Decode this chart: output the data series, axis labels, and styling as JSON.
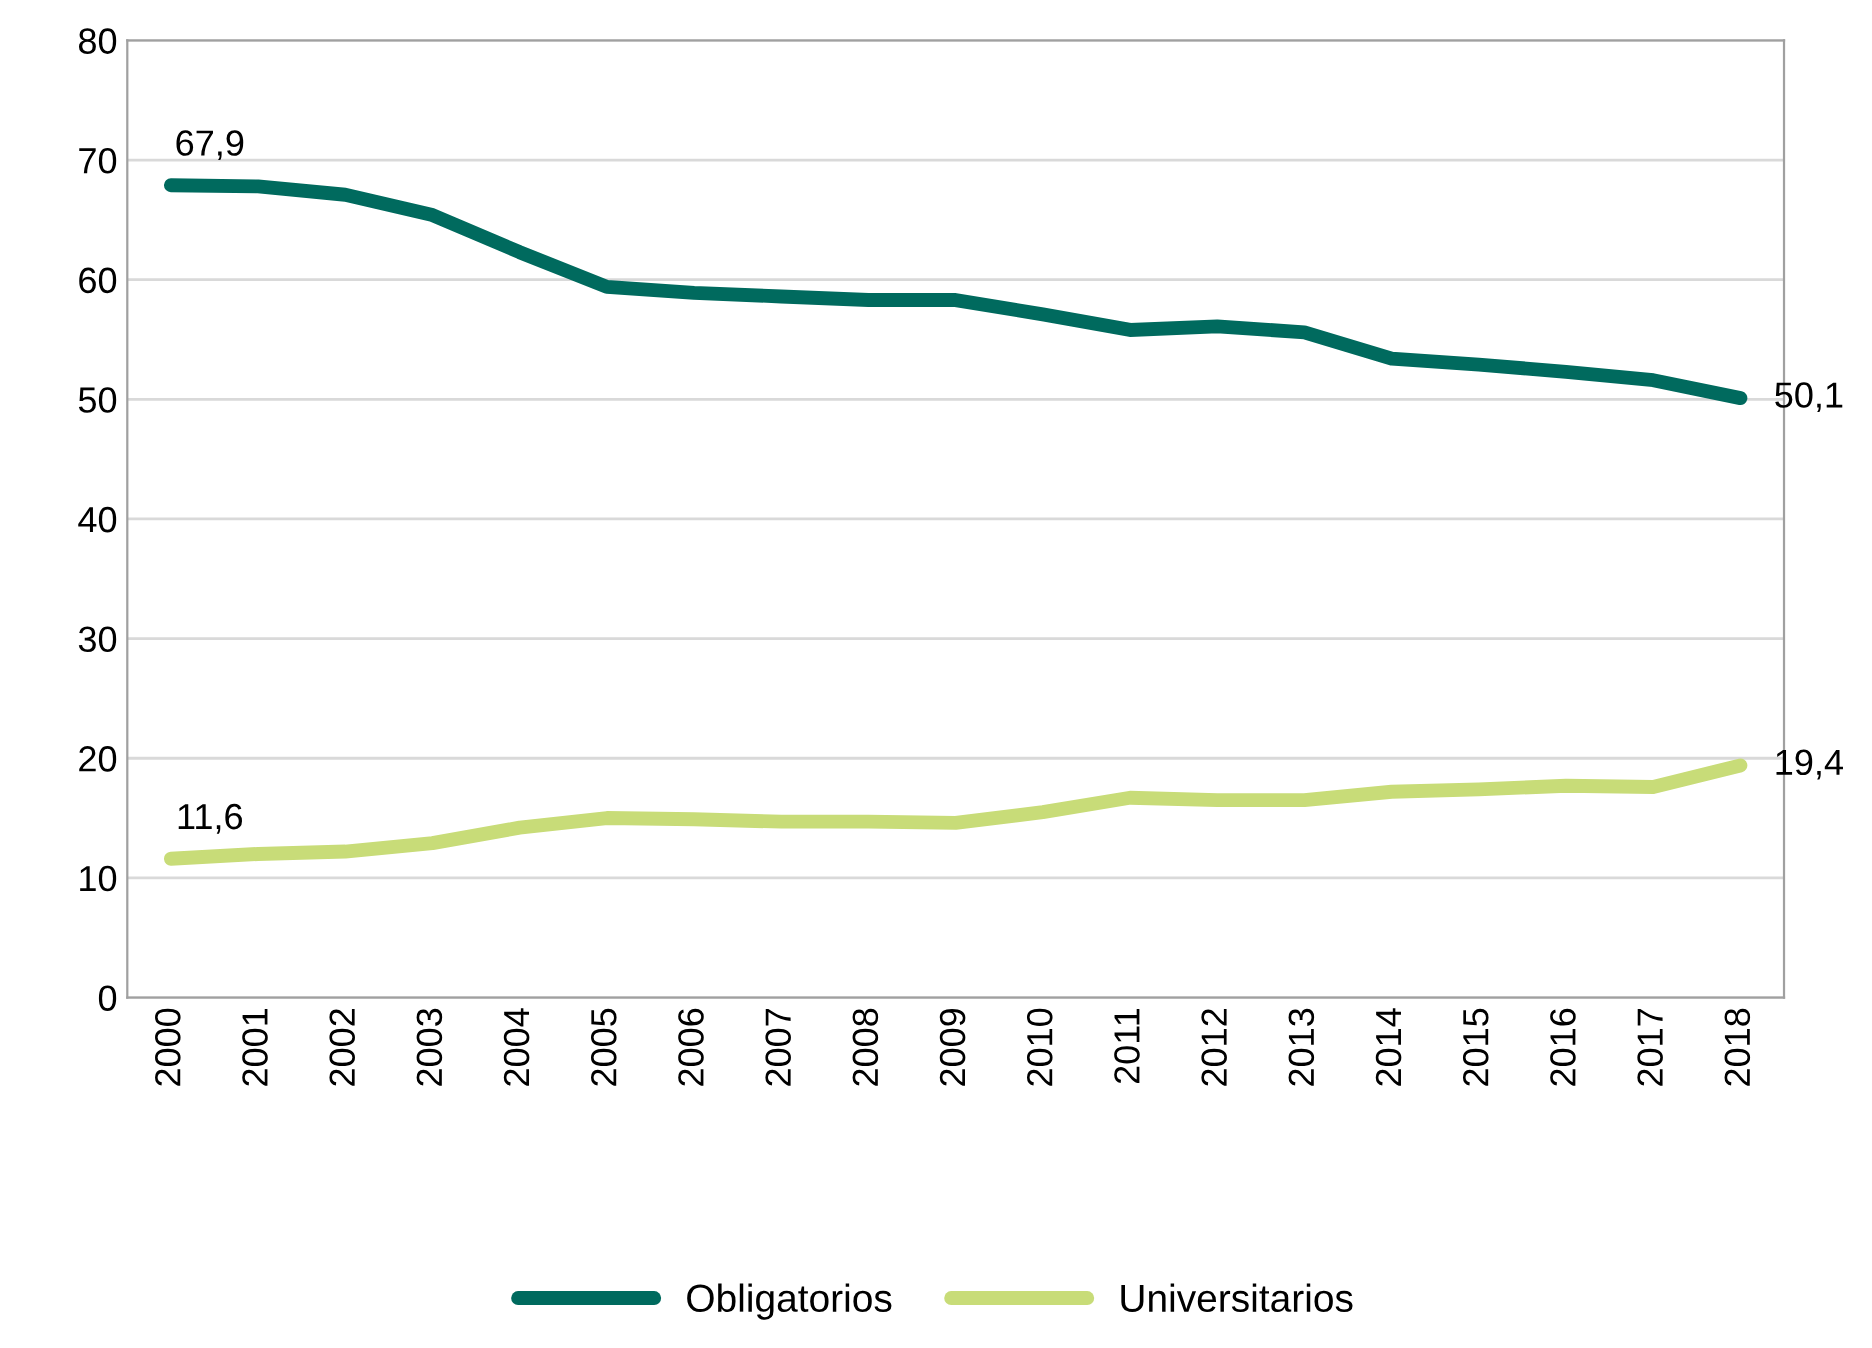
{
  "chart_data": {
    "type": "line",
    "categories": [
      "2000",
      "2001",
      "2002",
      "2003",
      "2004",
      "2005",
      "2006",
      "2007",
      "2008",
      "2009",
      "2010",
      "2011",
      "2012",
      "2013",
      "2014",
      "2015",
      "2016",
      "2017",
      "2018"
    ],
    "series": [
      {
        "name": "Obligatorios",
        "color": "#006a5e",
        "values": [
          67.9,
          67.8,
          67.1,
          65.4,
          62.3,
          59.4,
          58.9,
          58.6,
          58.3,
          58.3,
          57.1,
          55.8,
          56.1,
          55.6,
          53.4,
          52.9,
          52.3,
          51.6,
          50.1
        ],
        "value_labels": [
          "67,9",
          null,
          null,
          null,
          null,
          null,
          null,
          null,
          null,
          null,
          null,
          null,
          null,
          null,
          null,
          null,
          null,
          null,
          "50,1"
        ]
      },
      {
        "name": "Universitarios",
        "color": "#c8dc78",
        "values": [
          11.6,
          12.0,
          12.2,
          12.9,
          14.2,
          15.0,
          14.9,
          14.7,
          14.7,
          14.6,
          15.5,
          16.7,
          16.5,
          16.5,
          17.2,
          17.4,
          17.7,
          17.6,
          19.4
        ],
        "value_labels": [
          "11,6",
          null,
          null,
          null,
          null,
          null,
          null,
          null,
          null,
          null,
          null,
          null,
          null,
          null,
          null,
          null,
          null,
          null,
          "19,4"
        ]
      }
    ],
    "ylim": [
      0,
      80
    ],
    "yticks": [
      0,
      10,
      20,
      30,
      40,
      50,
      60,
      70,
      80
    ],
    "grid": "y",
    "legend": "bottom",
    "marker": "none",
    "line_style": "solid"
  }
}
